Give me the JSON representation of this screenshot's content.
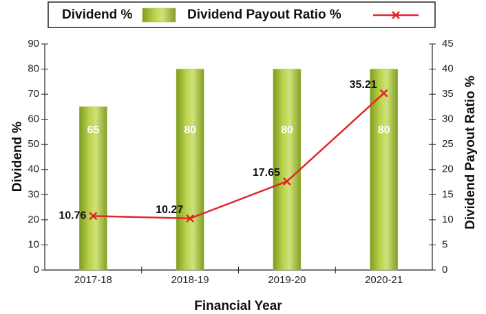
{
  "chart_data": {
    "type": "bar",
    "x_label": "Financial Year",
    "y_label": "Dividend %",
    "y2_label": "Dividend Payout Ratio %",
    "categories": [
      "2017-18",
      "2018-19",
      "2019-20",
      "2020-21"
    ],
    "series": [
      {
        "name": "Dividend %",
        "type": "bar",
        "color": "#9bb832",
        "values": [
          65,
          80,
          80,
          80
        ]
      },
      {
        "name": "Dividend Payout Ratio %",
        "type": "line",
        "axis": "y2",
        "color": "#e3242b",
        "values": [
          10.76,
          10.27,
          17.65,
          35.21
        ]
      }
    ],
    "ylim": [
      0,
      90
    ],
    "yticks": [
      0,
      10,
      20,
      30,
      40,
      50,
      60,
      70,
      80,
      90
    ],
    "y2lim": [
      0,
      45
    ],
    "y2ticks": [
      0,
      5,
      10,
      15,
      20,
      25,
      30,
      35,
      40,
      45
    ],
    "legend": "top"
  }
}
